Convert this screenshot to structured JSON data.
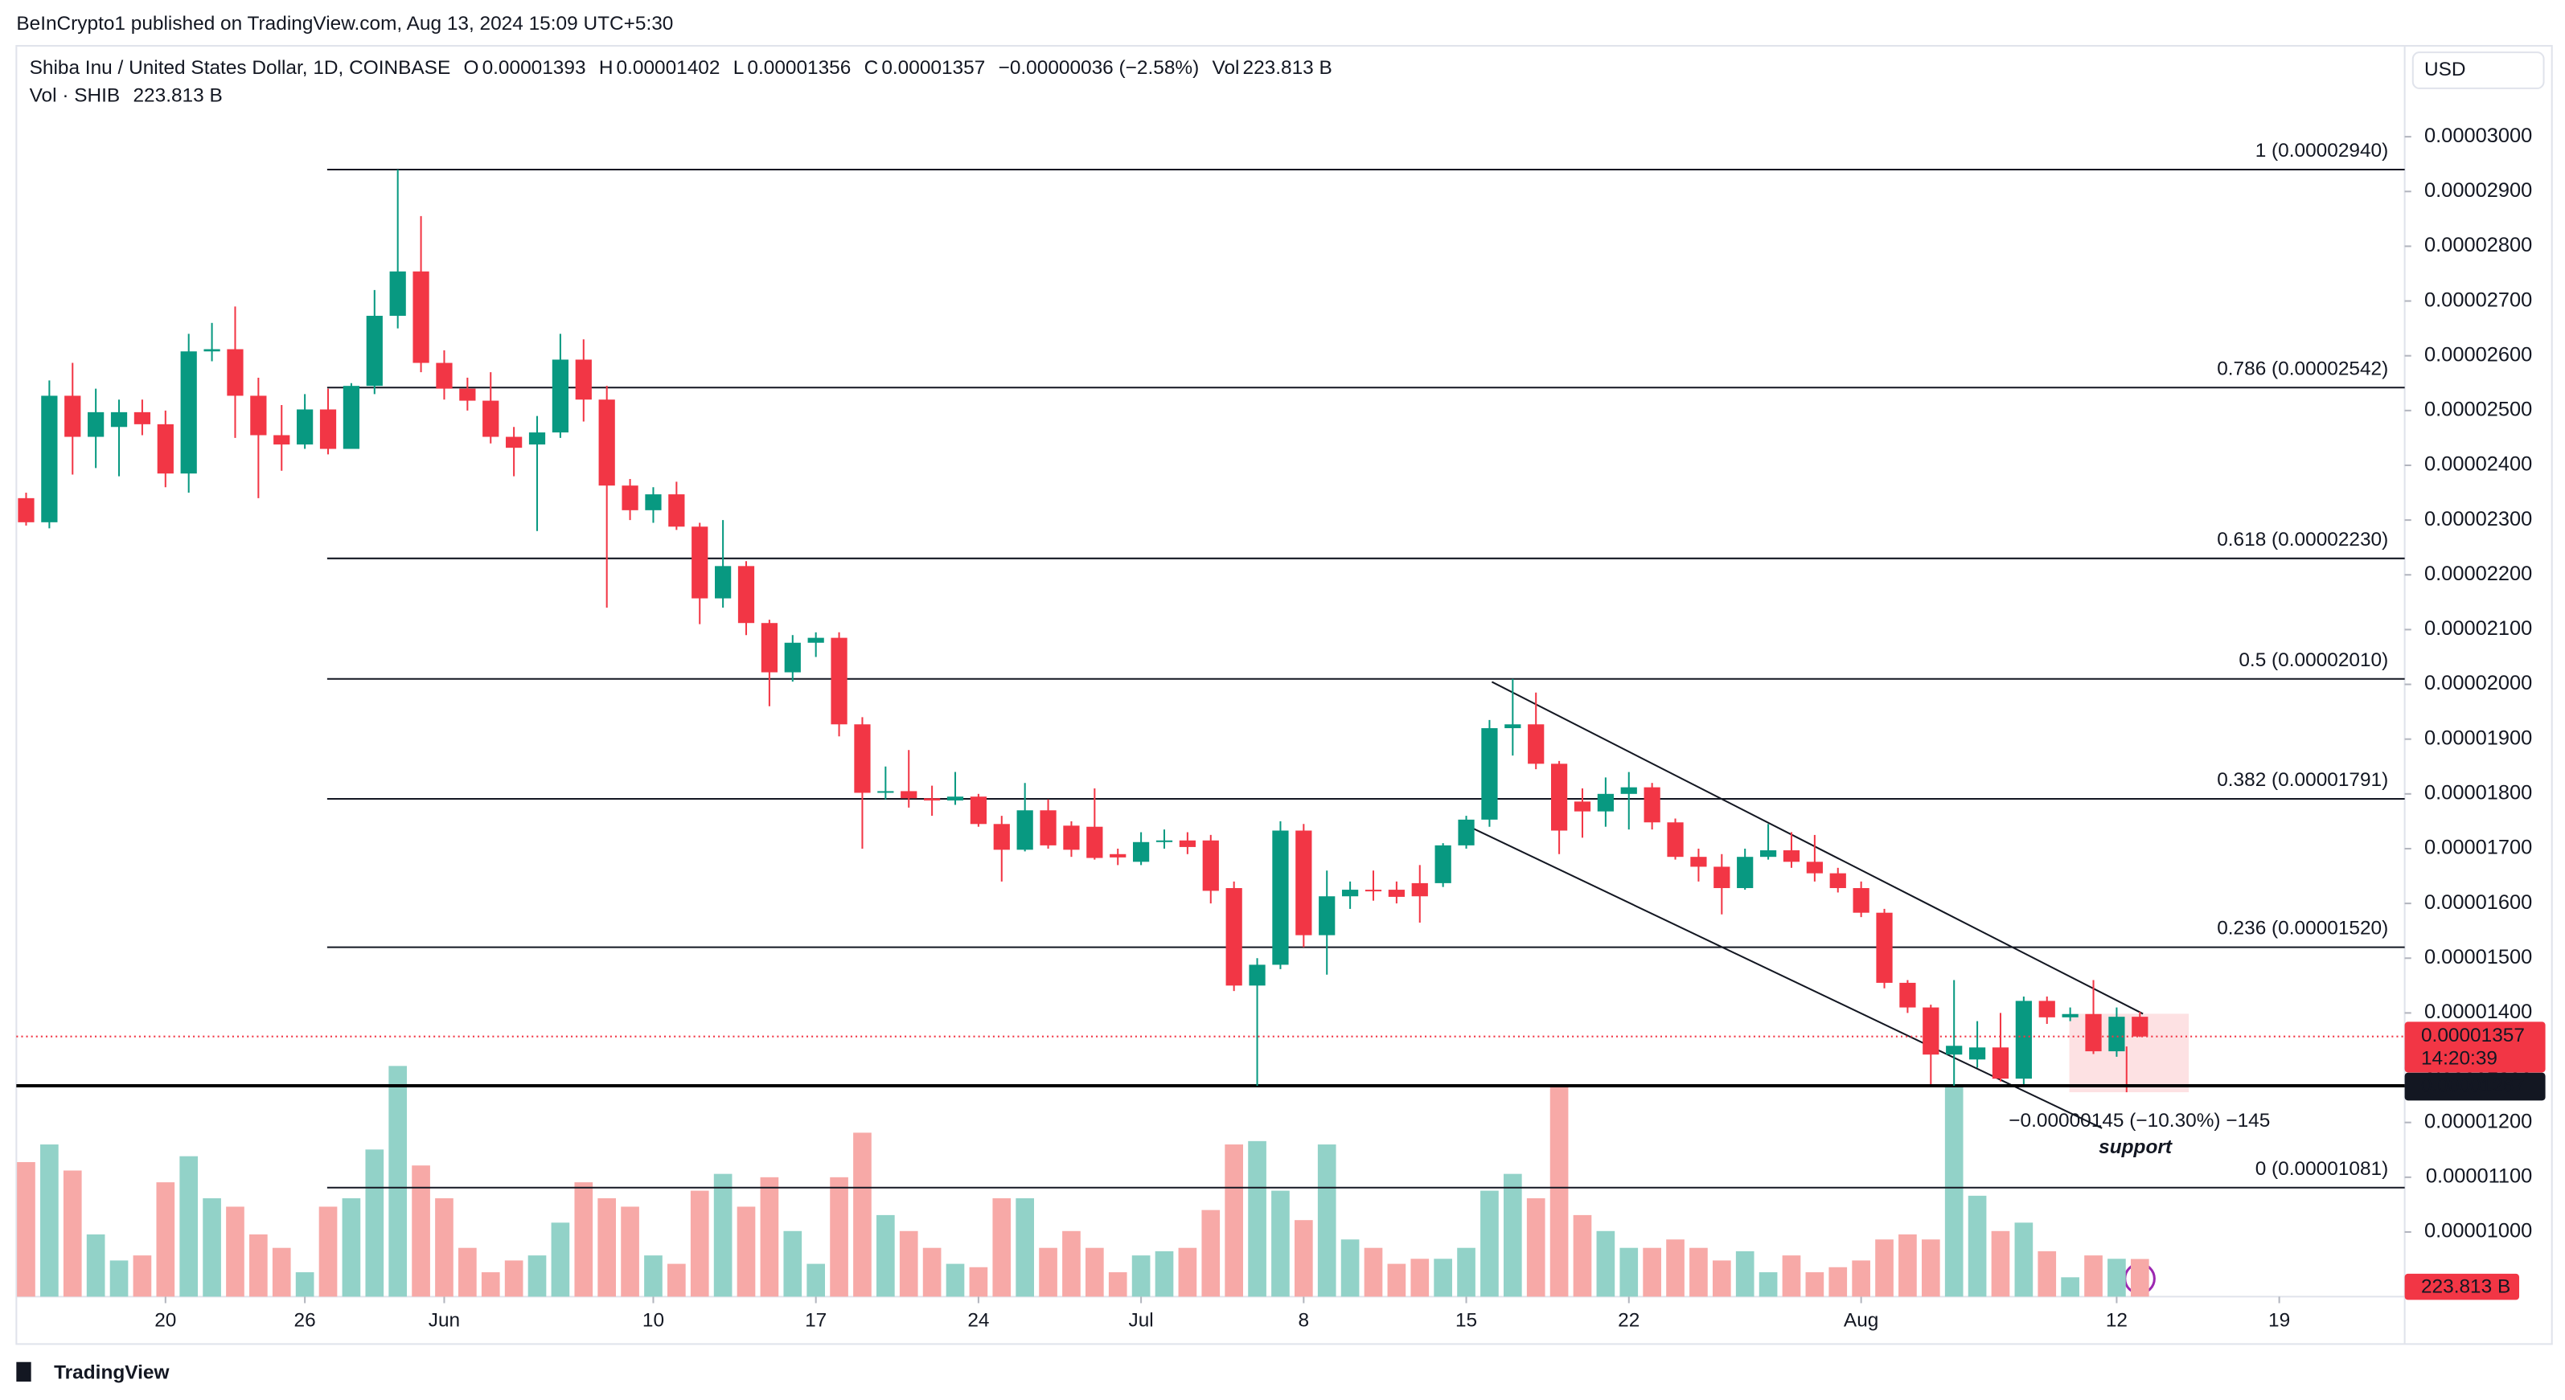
{
  "chart_data": {
    "type": "candlestick",
    "publisher": "BeInCrypto1 published on TradingView.com, Aug 13, 2024 15:09 UTC+5:30",
    "title": "Shiba Inu / United States Dollar, 1D, COINBASE",
    "o_label": "O",
    "h_label": "H",
    "l_label": "L",
    "c_label": "C",
    "change": "−0.00000036 (−2.58%)",
    "vol_name": "Vol",
    "vol_label": "223.813 B",
    "vol_series": "Vol · SHIB",
    "currency": "USD",
    "countdown": "14:20:39",
    "brand": "TradingView",
    "support_price": 1.267e-05,
    "support_label": "support",
    "measure_label": "−0.00000145 (−10.30%) −145",
    "up_color": "#089981",
    "down_color": "#f23645",
    "vol_up_color": "#92d2c8",
    "vol_down_color": "#f7a9a7",
    "fib_color": "#131722",
    "fib_levels": [
      {
        "label": "1 (0.00002940)",
        "value": 2.94e-05
      },
      {
        "label": "0.786 (0.00002542)",
        "value": 2.542e-05
      },
      {
        "label": "0.618 (0.00002230)",
        "value": 2.23e-05
      },
      {
        "label": "0.5 (0.00002010)",
        "value": 2.01e-05
      },
      {
        "label": "0.382 (0.00001791)",
        "value": 1.791e-05
      },
      {
        "label": "0.236 (0.00001520)",
        "value": 1.52e-05
      },
      {
        "label": "0 (0.00001081)",
        "value": 1.081e-05
      }
    ],
    "xlim": [
      -0.42,
      102.4
    ],
    "xticks": [
      {
        "value": 6,
        "label": "20"
      },
      {
        "value": 12,
        "label": "26"
      },
      {
        "value": 18,
        "label": "Jun"
      },
      {
        "value": 27,
        "label": "10"
      },
      {
        "value": 34,
        "label": "17"
      },
      {
        "value": 41,
        "label": "24"
      },
      {
        "value": 48,
        "label": "Jul"
      },
      {
        "value": 55,
        "label": "8"
      },
      {
        "value": 62,
        "label": "15"
      },
      {
        "value": 69,
        "label": "22"
      },
      {
        "value": 79,
        "label": "Aug"
      },
      {
        "value": 90,
        "label": "12"
      },
      {
        "value": 97,
        "label": "19"
      }
    ],
    "ylim": [
      8.82e-06,
      3.16e-05
    ],
    "yticks": [
      {
        "value": 1e-05,
        "label": "0.00001000"
      },
      {
        "value": 1.1e-05,
        "label": "0.00001100"
      },
      {
        "value": 1.2e-05,
        "label": "0.00001200"
      },
      {
        "value": 1.3e-05,
        "label": "0.00001300"
      },
      {
        "value": 1.4e-05,
        "label": "0.00001400"
      },
      {
        "value": 1.5e-05,
        "label": "0.00001500"
      },
      {
        "value": 1.6e-05,
        "label": "0.00001600"
      },
      {
        "value": 1.7e-05,
        "label": "0.00001700"
      },
      {
        "value": 1.8e-05,
        "label": "0.00001800"
      },
      {
        "value": 1.9e-05,
        "label": "0.00001900"
      },
      {
        "value": 2e-05,
        "label": "0.00002000"
      },
      {
        "value": 2.1e-05,
        "label": "0.00002100"
      },
      {
        "value": 2.2e-05,
        "label": "0.00002200"
      },
      {
        "value": 2.3e-05,
        "label": "0.00002300"
      },
      {
        "value": 2.4e-05,
        "label": "0.00002400"
      },
      {
        "value": 2.5e-05,
        "label": "0.00002500"
      },
      {
        "value": 2.6e-05,
        "label": "0.00002600"
      },
      {
        "value": 2.7e-05,
        "label": "0.00002700"
      },
      {
        "value": 2.8e-05,
        "label": "0.00002800"
      },
      {
        "value": 2.9e-05,
        "label": "0.00002900"
      },
      {
        "value": 3e-05,
        "label": "0.00003000"
      }
    ],
    "volume_ylim": [
      0,
      7420
    ],
    "ohlc": [
      [
        2.34e-05,
        2.35e-05,
        2.29e-05,
        2.296e-05
      ],
      [
        2.296e-05,
        2.555e-05,
        2.285e-05,
        2.527e-05
      ],
      [
        2.527e-05,
        2.587e-05,
        2.383e-05,
        2.452e-05
      ],
      [
        2.452e-05,
        2.54e-05,
        2.395e-05,
        2.497e-05
      ],
      [
        2.47e-05,
        2.52e-05,
        2.38e-05,
        2.497e-05
      ],
      [
        2.497e-05,
        2.52e-05,
        2.455e-05,
        2.475e-05
      ],
      [
        2.475e-05,
        2.5e-05,
        2.36e-05,
        2.385e-05
      ],
      [
        2.385e-05,
        2.64e-05,
        2.35e-05,
        2.608e-05
      ],
      [
        2.608e-05,
        2.66e-05,
        2.59e-05,
        2.612e-05
      ],
      [
        2.612e-05,
        2.69e-05,
        2.45e-05,
        2.527e-05
      ],
      [
        2.527e-05,
        2.56e-05,
        2.34e-05,
        2.455e-05
      ],
      [
        2.455e-05,
        2.51e-05,
        2.39e-05,
        2.438e-05
      ],
      [
        2.438e-05,
        2.53e-05,
        2.43e-05,
        2.502e-05
      ],
      [
        2.502e-05,
        2.54e-05,
        2.42e-05,
        2.43e-05
      ],
      [
        2.43e-05,
        2.55e-05,
        2.43e-05,
        2.545e-05
      ],
      [
        2.545e-05,
        2.72e-05,
        2.53e-05,
        2.673e-05
      ],
      [
        2.673e-05,
        2.94e-05,
        2.65e-05,
        2.754e-05
      ],
      [
        2.754e-05,
        2.855e-05,
        2.57e-05,
        2.587e-05
      ],
      [
        2.587e-05,
        2.61e-05,
        2.52e-05,
        2.54e-05
      ],
      [
        2.54e-05,
        2.56e-05,
        2.5e-05,
        2.518e-05
      ],
      [
        2.518e-05,
        2.57e-05,
        2.44e-05,
        2.452e-05
      ],
      [
        2.452e-05,
        2.47e-05,
        2.38e-05,
        2.432e-05
      ],
      [
        2.438e-05,
        2.49e-05,
        2.28e-05,
        2.46e-05
      ],
      [
        2.46e-05,
        2.64e-05,
        2.45e-05,
        2.593e-05
      ],
      [
        2.593e-05,
        2.63e-05,
        2.48e-05,
        2.52e-05
      ],
      [
        2.52e-05,
        2.545e-05,
        2.14e-05,
        2.363e-05
      ],
      [
        2.363e-05,
        2.375e-05,
        2.3e-05,
        2.318e-05
      ],
      [
        2.318e-05,
        2.36e-05,
        2.295e-05,
        2.347e-05
      ],
      [
        2.347e-05,
        2.37e-05,
        2.282e-05,
        2.288e-05
      ],
      [
        2.288e-05,
        2.295e-05,
        2.11e-05,
        2.157e-05
      ],
      [
        2.157e-05,
        2.3e-05,
        2.14e-05,
        2.216e-05
      ],
      [
        2.216e-05,
        2.225e-05,
        2.09e-05,
        2.112e-05
      ],
      [
        2.112e-05,
        2.118e-05,
        1.96e-05,
        2.022e-05
      ],
      [
        2.022e-05,
        2.09e-05,
        2.005e-05,
        2.076e-05
      ],
      [
        2.076e-05,
        2.095e-05,
        2.05e-05,
        2.085e-05
      ],
      [
        2.085e-05,
        2.095e-05,
        1.905e-05,
        1.927e-05
      ],
      [
        1.927e-05,
        1.94e-05,
        1.7e-05,
        1.802e-05
      ],
      [
        1.802e-05,
        1.85e-05,
        1.79e-05,
        1.805e-05
      ],
      [
        1.805e-05,
        1.88e-05,
        1.775e-05,
        1.792e-05
      ],
      [
        1.792e-05,
        1.815e-05,
        1.76e-05,
        1.788e-05
      ],
      [
        1.788e-05,
        1.84e-05,
        1.78e-05,
        1.795e-05
      ],
      [
        1.795e-05,
        1.8e-05,
        1.74e-05,
        1.745e-05
      ],
      [
        1.745e-05,
        1.76e-05,
        1.64e-05,
        1.698e-05
      ],
      [
        1.698e-05,
        1.82e-05,
        1.695e-05,
        1.77e-05
      ],
      [
        1.77e-05,
        1.79e-05,
        1.7e-05,
        1.706e-05
      ],
      [
        1.742e-05,
        1.75e-05,
        1.685e-05,
        1.698e-05
      ],
      [
        1.74e-05,
        1.81e-05,
        1.68e-05,
        1.683e-05
      ],
      [
        1.69e-05,
        1.7e-05,
        1.67e-05,
        1.684e-05
      ],
      [
        1.676e-05,
        1.73e-05,
        1.67e-05,
        1.712e-05
      ],
      [
        1.712e-05,
        1.735e-05,
        1.7e-05,
        1.715e-05
      ],
      [
        1.715e-05,
        1.73e-05,
        1.69e-05,
        1.703e-05
      ],
      [
        1.715e-05,
        1.725e-05,
        1.6e-05,
        1.623e-05
      ],
      [
        1.628e-05,
        1.64e-05,
        1.44e-05,
        1.45e-05
      ],
      [
        1.45e-05,
        1.5e-05,
        1.267e-05,
        1.488e-05
      ],
      [
        1.488e-05,
        1.75e-05,
        1.48e-05,
        1.733e-05
      ],
      [
        1.733e-05,
        1.745e-05,
        1.52e-05,
        1.542e-05
      ],
      [
        1.542e-05,
        1.66e-05,
        1.47e-05,
        1.613e-05
      ],
      [
        1.613e-05,
        1.64e-05,
        1.59e-05,
        1.625e-05
      ],
      [
        1.625e-05,
        1.66e-05,
        1.605e-05,
        1.622e-05
      ],
      [
        1.625e-05,
        1.64e-05,
        1.6e-05,
        1.612e-05
      ],
      [
        1.637e-05,
        1.67e-05,
        1.565e-05,
        1.613e-05
      ],
      [
        1.637e-05,
        1.71e-05,
        1.63e-05,
        1.706e-05
      ],
      [
        1.706e-05,
        1.76e-05,
        1.7e-05,
        1.753e-05
      ],
      [
        1.753e-05,
        1.935e-05,
        1.74e-05,
        1.92e-05
      ],
      [
        1.92e-05,
        2.01e-05,
        1.87e-05,
        1.927e-05
      ],
      [
        1.927e-05,
        1.985e-05,
        1.845e-05,
        1.855e-05
      ],
      [
        1.855e-05,
        1.86e-05,
        1.69e-05,
        1.733e-05
      ],
      [
        1.786e-05,
        1.81e-05,
        1.72e-05,
        1.768e-05
      ],
      [
        1.768e-05,
        1.83e-05,
        1.74e-05,
        1.8e-05
      ],
      [
        1.8e-05,
        1.84e-05,
        1.735e-05,
        1.812e-05
      ],
      [
        1.812e-05,
        1.82e-05,
        1.735e-05,
        1.748e-05
      ],
      [
        1.748e-05,
        1.755e-05,
        1.68e-05,
        1.685e-05
      ],
      [
        1.685e-05,
        1.7e-05,
        1.64e-05,
        1.667e-05
      ],
      [
        1.667e-05,
        1.69e-05,
        1.58e-05,
        1.628e-05
      ],
      [
        1.628e-05,
        1.7e-05,
        1.625e-05,
        1.685e-05
      ],
      [
        1.685e-05,
        1.745e-05,
        1.68e-05,
        1.697e-05
      ],
      [
        1.697e-05,
        1.73e-05,
        1.665e-05,
        1.676e-05
      ],
      [
        1.676e-05,
        1.725e-05,
        1.64e-05,
        1.655e-05
      ],
      [
        1.655e-05,
        1.665e-05,
        1.62e-05,
        1.628e-05
      ],
      [
        1.628e-05,
        1.64e-05,
        1.575e-05,
        1.583e-05
      ],
      [
        1.583e-05,
        1.59e-05,
        1.445e-05,
        1.455e-05
      ],
      [
        1.455e-05,
        1.46e-05,
        1.4e-05,
        1.41e-05
      ],
      [
        1.41e-05,
        1.415e-05,
        1.27e-05,
        1.324e-05
      ],
      [
        1.324e-05,
        1.46e-05,
        1.267e-05,
        1.34e-05
      ],
      [
        1.315e-05,
        1.385e-05,
        1.3e-05,
        1.337e-05
      ],
      [
        1.337e-05,
        1.4e-05,
        1.275e-05,
        1.28e-05
      ],
      [
        1.28e-05,
        1.43e-05,
        1.27e-05,
        1.422e-05
      ],
      [
        1.422e-05,
        1.43e-05,
        1.38e-05,
        1.392e-05
      ],
      [
        1.392e-05,
        1.41e-05,
        1.385e-05,
        1.398e-05
      ],
      [
        1.398e-05,
        1.46e-05,
        1.325e-05,
        1.33e-05
      ],
      [
        1.33e-05,
        1.41e-05,
        1.32e-05,
        1.393e-05
      ],
      [
        1.393e-05,
        1.402e-05,
        1.356e-05,
        1.357e-05
      ]
    ],
    "volume": [
      800,
      905,
      750,
      370,
      215,
      245,
      680,
      835,
      585,
      535,
      370,
      290,
      145,
      535,
      585,
      875,
      1372,
      780,
      585,
      290,
      145,
      215,
      245,
      440,
      680,
      585,
      535,
      245,
      195,
      630,
      730,
      535,
      710,
      390,
      195,
      710,
      975,
      485,
      390,
      290,
      195,
      175,
      585,
      585,
      290,
      390,
      290,
      145,
      245,
      270,
      290,
      515,
      905,
      925,
      630,
      455,
      905,
      340,
      290,
      195,
      225,
      225,
      290,
      630,
      730,
      585,
      1245,
      485,
      390,
      290,
      290,
      340,
      290,
      215,
      270,
      145,
      245,
      145,
      175,
      215,
      340,
      370,
      340,
      1245,
      600,
      390,
      440,
      270,
      115,
      245,
      225,
      223.813
    ]
  }
}
